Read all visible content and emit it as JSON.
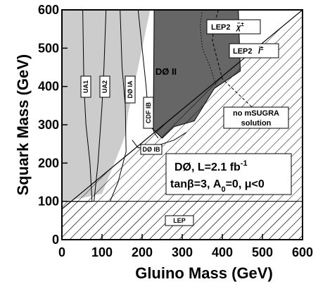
{
  "chart_data": {
    "type": "area",
    "title": "",
    "xlabel": "Gluino Mass (GeV)",
    "ylabel": "Squark Mass (GeV)",
    "xlim": [
      0,
      600
    ],
    "ylim": [
      0,
      600
    ],
    "x_ticks": [
      0,
      100,
      200,
      300,
      400,
      500,
      600
    ],
    "y_ticks": [
      0,
      100,
      200,
      300,
      400,
      500,
      600
    ],
    "x_tick_labels": [
      "0",
      "100",
      "200",
      "300",
      "400",
      "500",
      "600"
    ],
    "y_tick_labels": [
      "0",
      "100",
      "200",
      "300",
      "400",
      "500",
      "600"
    ],
    "grid": false,
    "regions": [
      {
        "label": "DØ II",
        "fill": "#666666",
        "x": [
          230,
          440,
          445,
          380,
          330,
          280,
          250,
          225,
          228
        ],
        "y": [
          600,
          600,
          440,
          395,
          310,
          295,
          265,
          290,
          330
        ]
      },
      {
        "label": "",
        "fill": "#cccccc",
        "x": [
          0,
          220,
          190,
          175,
          165,
          160,
          150,
          100,
          10,
          0
        ],
        "y": [
          600,
          600,
          450,
          380,
          330,
          280,
          250,
          120,
          100,
          100
        ]
      }
    ],
    "exclusion_lines": [
      {
        "label": "UA1",
        "x": [
          52,
          55,
          60,
          70,
          75,
          0
        ],
        "y": [
          600,
          400,
          300,
          200,
          100,
          100
        ]
      },
      {
        "label": "UA2",
        "x": [
          110,
          105,
          100,
          90,
          80
        ],
        "y": [
          600,
          450,
          350,
          200,
          100
        ]
      },
      {
        "label": "DØ IA",
        "x": [
          145,
          150,
          158,
          160,
          140,
          120
        ],
        "y": [
          600,
          450,
          350,
          230,
          150,
          100
        ]
      },
      {
        "label": "CDF IB",
        "x": [
          190,
          200,
          210,
          215,
          230,
          240
        ],
        "y": [
          600,
          500,
          400,
          330,
          280,
          265
        ]
      },
      {
        "label": "DØ IB",
        "x": [
          175,
          190,
          220,
          250,
          280,
          310
        ],
        "y": [
          260,
          240,
          240,
          250,
          260,
          280
        ]
      }
    ],
    "legend_curves": [
      {
        "label": "LEP2 χ̃±",
        "style": "dashed",
        "x": [
          390,
          380,
          375,
          400,
          430,
          460,
          480,
          540
        ],
        "y": [
          600,
          560,
          520,
          420,
          390,
          360,
          340,
          310
        ]
      },
      {
        "label": "LEP2 l̃±",
        "style": "dotted",
        "x": [
          350,
          345,
          350,
          370,
          385
        ],
        "y": [
          600,
          560,
          500,
          450,
          400
        ]
      }
    ],
    "no_msugra_solution_boundary": {
      "x": [
        0,
        600
      ],
      "y": [
        80,
        600
      ]
    },
    "lep_hatched_line": {
      "x": [
        0,
        600
      ],
      "y": [
        100,
        100
      ]
    },
    "annotations": [
      {
        "text": "UA1"
      },
      {
        "text": "UA2"
      },
      {
        "text": "DØ IA"
      },
      {
        "text": "CDF IB"
      },
      {
        "text": "DØ IB"
      },
      {
        "text": "DØ II"
      },
      {
        "text": "no mSUGRA"
      },
      {
        "text": "solution"
      },
      {
        "text": "LEP"
      },
      {
        "text": "LEP2"
      },
      {
        "text": "LEP2"
      }
    ],
    "info_line1": "DØ, L=2.1 fb",
    "info_line1_sup": "-1",
    "info_line2": "tanβ=3, A",
    "info_line2_sub": "0",
    "info_line2_tail": "=0, μ<0"
  }
}
